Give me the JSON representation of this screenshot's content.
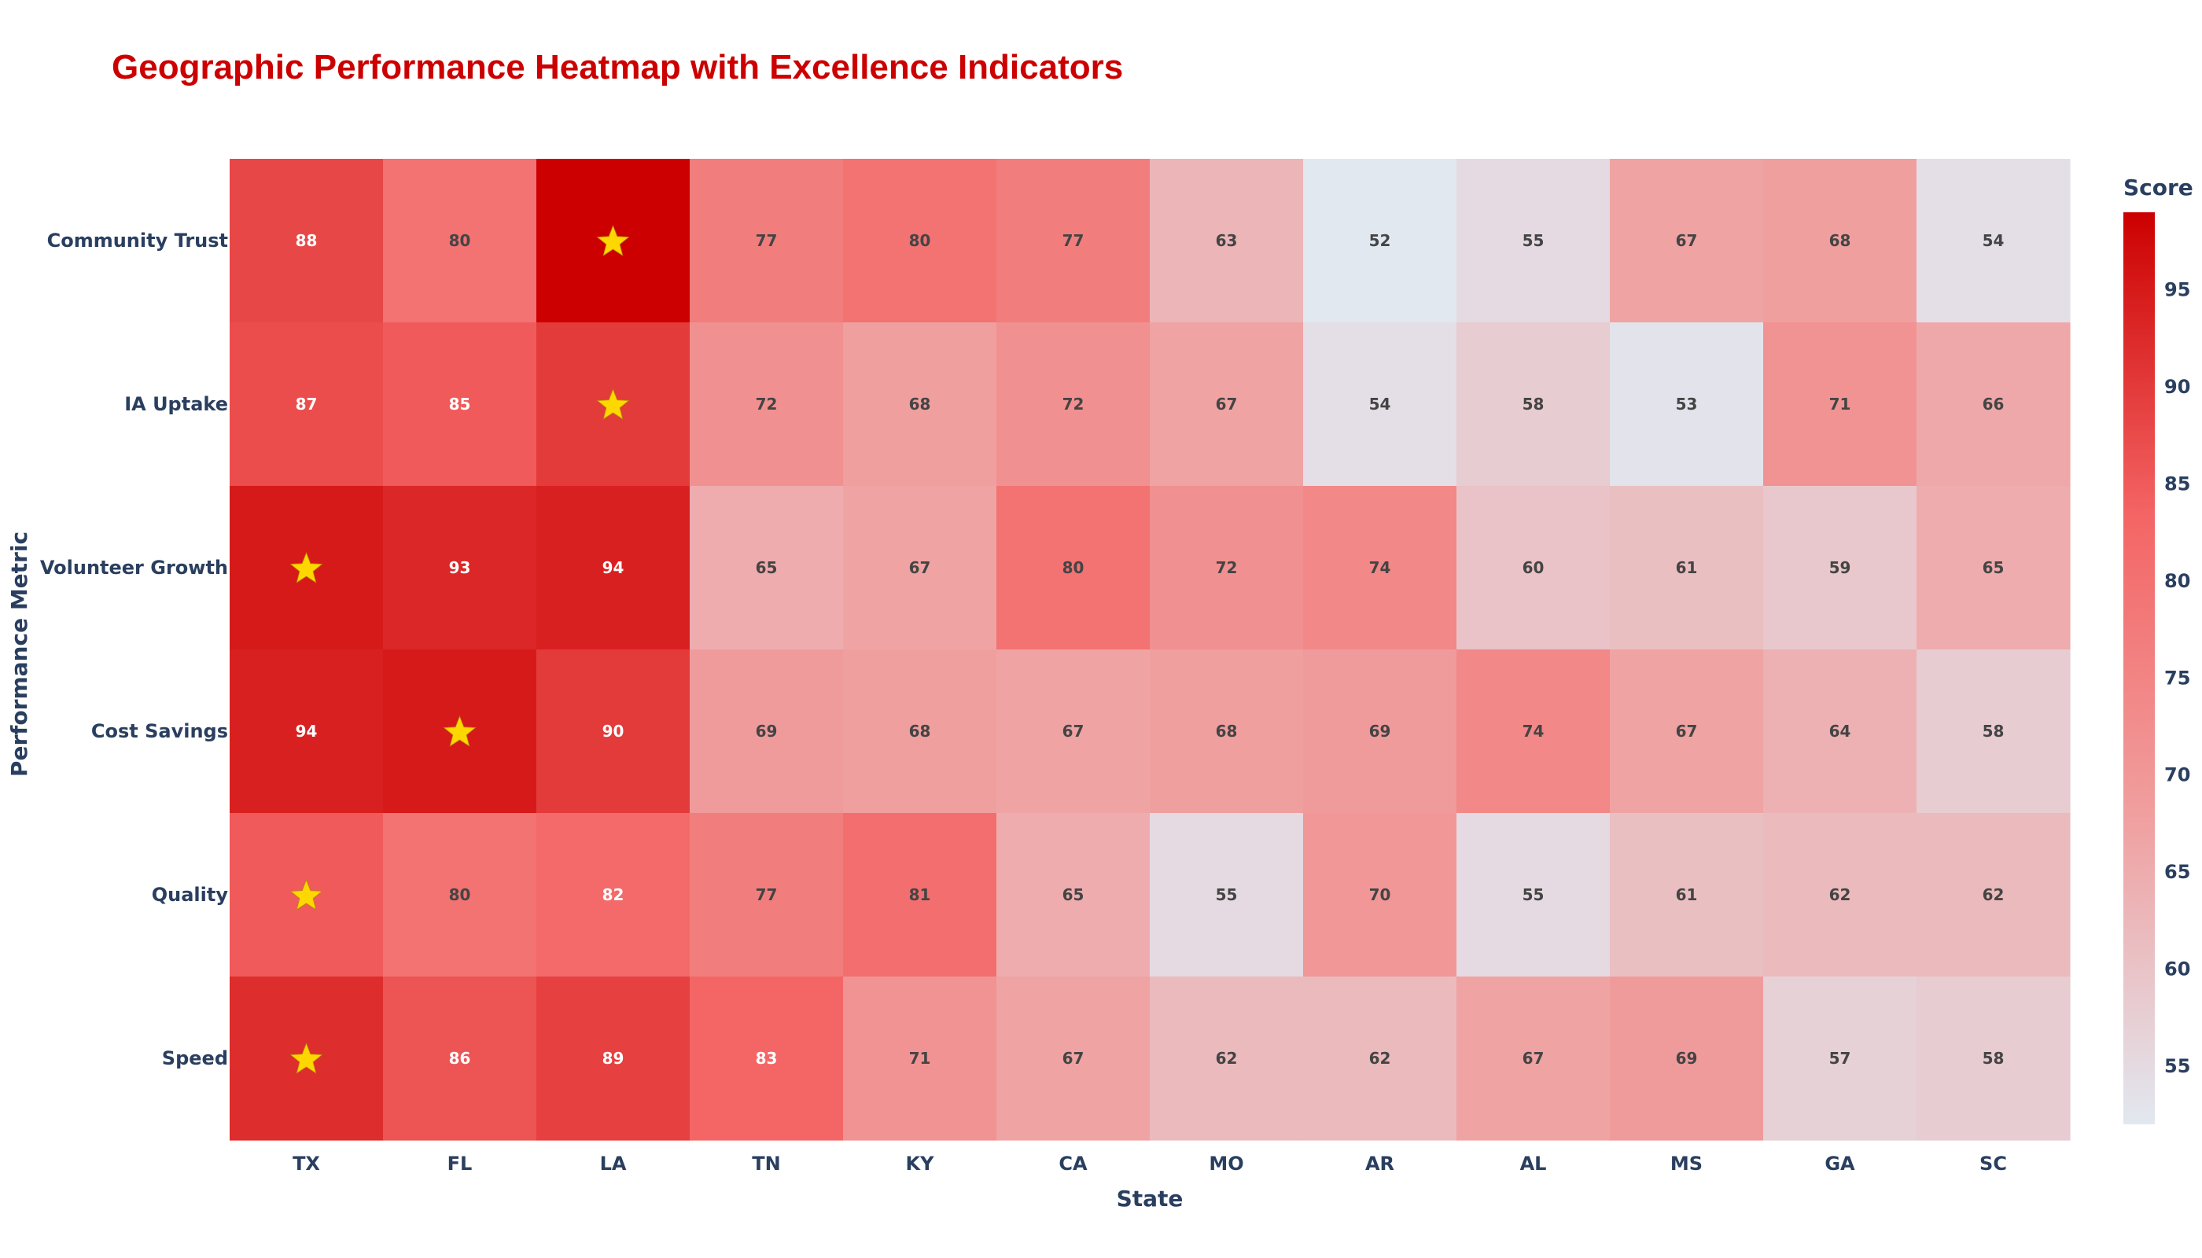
{
  "chart_data": {
    "type": "heatmap",
    "title": "Geographic Performance Heatmap with Excellence Indicators",
    "xlabel": "State",
    "ylabel": "Performance Metric",
    "x": [
      "TX",
      "FL",
      "LA",
      "TN",
      "KY",
      "CA",
      "MO",
      "AR",
      "AL",
      "MS",
      "GA",
      "SC"
    ],
    "y": [
      "Community Trust",
      "IA Uptake",
      "Volunteer Growth",
      "Cost Savings",
      "Quality",
      "Speed"
    ],
    "z": [
      [
        88,
        80,
        99,
        77,
        80,
        77,
        63,
        52,
        55,
        67,
        68,
        54
      ],
      [
        87,
        85,
        90,
        72,
        68,
        72,
        67,
        54,
        58,
        53,
        71,
        66
      ],
      [
        95,
        93,
        94,
        65,
        67,
        80,
        72,
        74,
        60,
        61,
        59,
        65
      ],
      [
        94,
        95,
        90,
        69,
        68,
        67,
        68,
        69,
        74,
        67,
        64,
        58
      ],
      [
        85,
        80,
        82,
        77,
        81,
        65,
        55,
        70,
        55,
        61,
        62,
        62
      ],
      [
        92,
        86,
        89,
        83,
        71,
        67,
        62,
        62,
        67,
        69,
        57,
        58
      ]
    ],
    "stars": [
      [
        false,
        false,
        true,
        false,
        false,
        false,
        false,
        false,
        false,
        false,
        false,
        false
      ],
      [
        false,
        false,
        true,
        false,
        false,
        false,
        false,
        false,
        false,
        false,
        false,
        false
      ],
      [
        true,
        false,
        false,
        false,
        false,
        false,
        false,
        false,
        false,
        false,
        false,
        false
      ],
      [
        false,
        true,
        false,
        false,
        false,
        false,
        false,
        false,
        false,
        false,
        false,
        false
      ],
      [
        true,
        false,
        false,
        false,
        false,
        false,
        false,
        false,
        false,
        false,
        false,
        false
      ],
      [
        true,
        false,
        false,
        false,
        false,
        false,
        false,
        false,
        false,
        false,
        false,
        false
      ]
    ],
    "zrange": [
      52,
      99
    ],
    "colorscale": [
      "#e2e8f0",
      "#f0a0a0",
      "#f46565",
      "#cc0000"
    ],
    "colorbar": {
      "title": "Score",
      "ticks": [
        55,
        60,
        65,
        70,
        75,
        80,
        85,
        90,
        95
      ]
    },
    "star_color": "#ffd700",
    "title_color": "#cc0000",
    "text_dark": "#444444",
    "text_light": "#ffffff",
    "legend": false
  }
}
